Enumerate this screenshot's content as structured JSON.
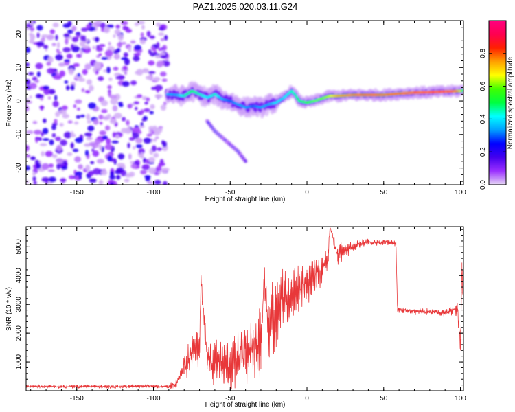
{
  "title": "PAZ1.2025.020.03.11.G24",
  "chart_data": [
    {
      "type": "heatmap",
      "xlabel": "Height of straight line (km)",
      "ylabel": "Frequency (Hz)",
      "xlim": [
        -183,
        102
      ],
      "ylim": [
        -25,
        24
      ],
      "xticks": [
        -150,
        -100,
        -50,
        0,
        50,
        100
      ],
      "yticks": [
        -20,
        -10,
        0,
        10,
        20
      ],
      "colorbar": {
        "label": "Normalized spectral amplitude",
        "range": [
          0,
          1
        ],
        "ticks": [
          0.0,
          0.2,
          0.4,
          0.6,
          0.8
        ],
        "colormap": [
          "#e6d8f5",
          "#9b30ff",
          "#4400ee",
          "#0000ff",
          "#00a0ff",
          "#00ffff",
          "#00ff40",
          "#40ff00",
          "#ffff00",
          "#ffa000",
          "#ff2000",
          "#ff0050",
          "#ff0080"
        ]
      },
      "noise_region": {
        "x": [
          -183,
          -91
        ],
        "y": [
          -25,
          24
        ]
      },
      "ridge": {
        "x": [
          -91,
          -85,
          -80,
          -75,
          -70,
          -65,
          -60,
          -55,
          -50,
          -45,
          -40,
          -35,
          -30,
          -25,
          -20,
          -15,
          -10,
          -8,
          -5,
          0,
          5,
          10,
          15,
          20,
          30,
          40,
          50,
          60,
          70,
          80,
          90,
          95,
          100,
          102
        ],
        "y": [
          2,
          1.8,
          1.5,
          3,
          2,
          1,
          2,
          0.5,
          0,
          -1,
          -2,
          -1.5,
          -2,
          -1,
          -0.5,
          1,
          3,
          2,
          0,
          -0.5,
          0,
          0.8,
          1.5,
          1.5,
          1.8,
          1.8,
          1.8,
          2.2,
          2.5,
          2.6,
          2.8,
          2.9,
          3,
          3.2
        ],
        "amplitude": [
          0.35,
          0.35,
          0.45,
          0.5,
          0.45,
          0.4,
          0.45,
          0.35,
          0.3,
          0.35,
          0.35,
          0.3,
          0.35,
          0.35,
          0.4,
          0.4,
          0.45,
          0.45,
          0.5,
          0.55,
          0.6,
          0.6,
          0.65,
          0.75,
          0.8,
          0.85,
          0.8,
          0.85,
          0.9,
          0.95,
          0.95,
          0.9,
          0.7,
          0.5
        ]
      },
      "secondary_branch": {
        "x": [
          -65,
          -60,
          -55,
          -50,
          -45,
          -40
        ],
        "y": [
          -6,
          -9,
          -11,
          -13,
          -15,
          -18
        ],
        "amplitude": [
          0.25,
          0.3,
          0.3,
          0.25,
          0.3,
          0.15
        ]
      }
    },
    {
      "type": "line",
      "xlabel": "Height of straight line (km)",
      "ylabel": "SNR (10 * v/v)",
      "xlim": [
        -183,
        102
      ],
      "ylim": [
        0,
        5700
      ],
      "xticks": [
        -150,
        -100,
        -50,
        0,
        50,
        100
      ],
      "yticks": [
        1000,
        2000,
        3000,
        4000,
        5000
      ],
      "color": "#e8383a",
      "series": [
        {
          "x": [
            -183,
            -170,
            -160,
            -150,
            -140,
            -130,
            -120,
            -110,
            -100,
            -90,
            -85,
            -80,
            -75,
            -70,
            -69,
            -65,
            -60,
            -55,
            -50,
            -45,
            -40,
            -35,
            -30,
            -28,
            -25,
            -20,
            -15,
            -10,
            -5,
            0,
            5,
            10,
            14,
            15,
            20,
            25,
            30,
            35,
            40,
            45,
            50,
            55,
            58,
            59,
            60,
            70,
            80,
            90,
            95,
            98,
            100,
            101,
            102
          ],
          "y": [
            150,
            150,
            140,
            150,
            150,
            140,
            150,
            150,
            160,
            140,
            250,
            800,
            1300,
            1500,
            3850,
            1100,
            1100,
            1000,
            900,
            1200,
            1300,
            1500,
            1400,
            3900,
            2300,
            2700,
            3100,
            3300,
            3600,
            3800,
            4000,
            4300,
            4700,
            5700,
            4700,
            4900,
            5000,
            5100,
            5150,
            5150,
            5150,
            5150,
            5100,
            2800,
            2800,
            2750,
            2750,
            2700,
            2800,
            2900,
            1600,
            4200,
            2900
          ],
          "amplitude": [
            60,
            60,
            60,
            60,
            60,
            60,
            60,
            60,
            60,
            70,
            200,
            450,
            600,
            700,
            300,
            700,
            800,
            800,
            900,
            1000,
            1100,
            1200,
            1300,
            400,
            1300,
            1300,
            1200,
            1100,
            900,
            800,
            700,
            600,
            400,
            0,
            400,
            300,
            200,
            150,
            120,
            100,
            100,
            100,
            100,
            100,
            100,
            110,
            110,
            120,
            200,
            300,
            400,
            500,
            300
          ]
        }
      ]
    }
  ]
}
